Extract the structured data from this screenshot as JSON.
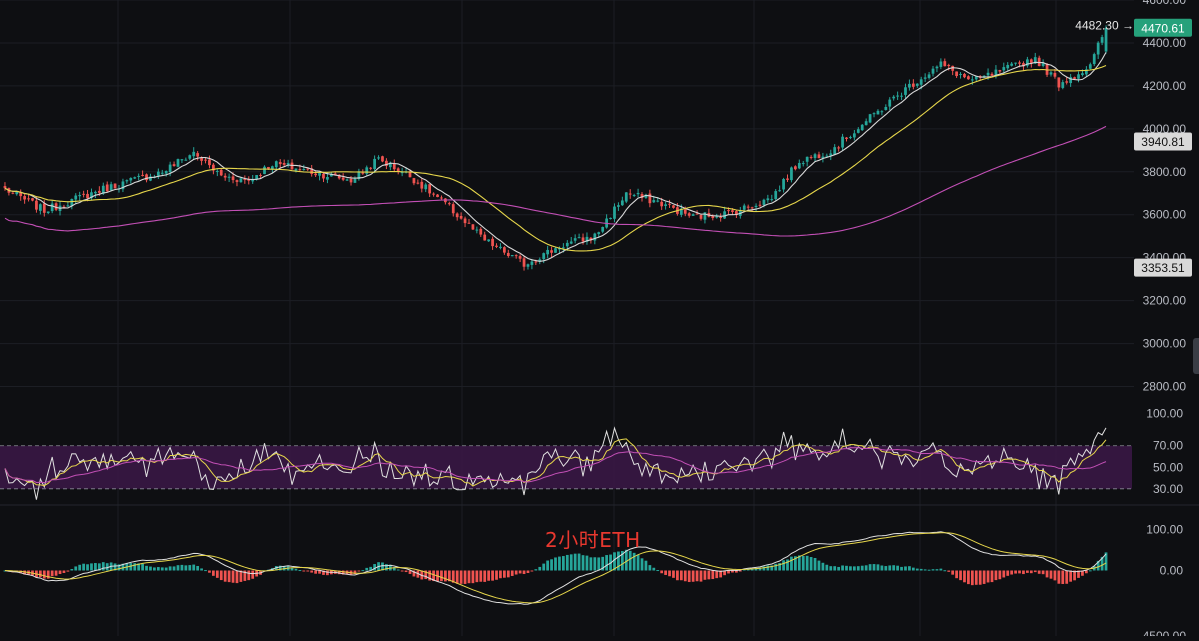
{
  "watermark": "2小时ETH",
  "colors": {
    "background": "#0e0f12",
    "grid": "#1c1e24",
    "up": "#26a69a",
    "down": "#ef5350",
    "ma_fast": "#d8d8d8",
    "ma_mid": "#e6d64b",
    "ma_slow": "#c24fb5",
    "rsi_band": "#3b1748",
    "price_badge": "#26a17b",
    "level_badge": "#d9d9d9"
  },
  "chart_data": [
    {
      "type": "candlestick",
      "panel": "price",
      "ylim": [
        2700,
        4600
      ],
      "y_ticks": [
        "4600.00",
        "4400.00",
        "4200.00",
        "4000.00",
        "3800.00",
        "3600.00",
        "3400.00",
        "3200.00",
        "3000.00",
        "2800.00"
      ],
      "grid": true,
      "anchors": [
        {
          "i": 0,
          "p": 3720
        },
        {
          "i": 10,
          "p": 3620
        },
        {
          "i": 25,
          "p": 3720
        },
        {
          "i": 40,
          "p": 3800
        },
        {
          "i": 48,
          "p": 3890
        },
        {
          "i": 55,
          "p": 3780
        },
        {
          "i": 62,
          "p": 3760
        },
        {
          "i": 68,
          "p": 3840
        },
        {
          "i": 78,
          "p": 3800
        },
        {
          "i": 88,
          "p": 3760
        },
        {
          "i": 95,
          "p": 3860
        },
        {
          "i": 103,
          "p": 3780
        },
        {
          "i": 112,
          "p": 3650
        },
        {
          "i": 122,
          "p": 3480
        },
        {
          "i": 132,
          "p": 3370
        },
        {
          "i": 142,
          "p": 3460
        },
        {
          "i": 150,
          "p": 3500
        },
        {
          "i": 158,
          "p": 3700
        },
        {
          "i": 166,
          "p": 3660
        },
        {
          "i": 175,
          "p": 3590
        },
        {
          "i": 185,
          "p": 3610
        },
        {
          "i": 195,
          "p": 3680
        },
        {
          "i": 202,
          "p": 3850
        },
        {
          "i": 210,
          "p": 3900
        },
        {
          "i": 220,
          "p": 4050
        },
        {
          "i": 230,
          "p": 4200
        },
        {
          "i": 238,
          "p": 4300
        },
        {
          "i": 246,
          "p": 4220
        },
        {
          "i": 255,
          "p": 4280
        },
        {
          "i": 262,
          "p": 4330
        },
        {
          "i": 268,
          "p": 4210
        },
        {
          "i": 276,
          "p": 4290
        },
        {
          "i": 280,
          "p": 4480
        }
      ],
      "candle_count": 281,
      "last_price_label": "4482.30 →",
      "badges": [
        {
          "label": "4470.61",
          "price": 4470.61,
          "style": "price"
        },
        {
          "label": "3940.81",
          "price": 3940.81,
          "style": "level"
        },
        {
          "label": "3353.51",
          "price": 3353.51,
          "style": "level"
        }
      ],
      "series": [
        {
          "kind": "sma",
          "period": 7,
          "color": "#d8d8d8"
        },
        {
          "kind": "sma",
          "period": 25,
          "color": "#e6d64b"
        },
        {
          "kind": "sma",
          "period": 99,
          "color": "#c24fb5"
        }
      ]
    },
    {
      "type": "line",
      "panel": "rsi",
      "ylim": [
        15,
        105
      ],
      "y_ticks": [
        "100.00",
        "70.00",
        "50.00",
        "30.00"
      ],
      "band": [
        30,
        70
      ]
    },
    {
      "type": "bar",
      "panel": "macd",
      "ylim": [
        -160,
        160
      ],
      "y_ticks": [
        "100.00",
        "0.00"
      ]
    }
  ],
  "cut_off_tick": "4500.00"
}
